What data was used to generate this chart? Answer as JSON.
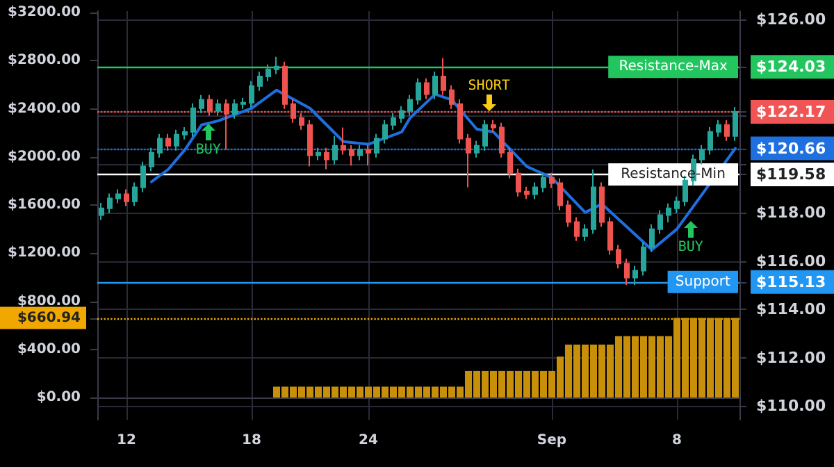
{
  "chart_data": {
    "type": "candlestick",
    "categories": [
      null,
      null,
      null,
      "12",
      null,
      null,
      null,
      null,
      null,
      null,
      null,
      null,
      null,
      null,
      null,
      null,
      null,
      null,
      "18",
      null,
      null,
      null,
      null,
      null,
      null,
      null,
      null,
      null,
      null,
      null,
      null,
      null,
      "24",
      null,
      null,
      null,
      null,
      null,
      null,
      null,
      null,
      null,
      null,
      null,
      null,
      null,
      null,
      null,
      null,
      null,
      null,
      null,
      null,
      null,
      "Sep",
      null,
      null,
      null,
      null,
      null,
      null,
      null,
      null,
      null,
      null,
      null,
      null,
      null,
      null,
      "8",
      null,
      null,
      null,
      null,
      null,
      null,
      null
    ],
    "ylim": [
      -185,
      3212
    ],
    "yticks": [
      {
        "value": 0,
        "label": "$0.00"
      },
      {
        "value": 400,
        "label": "$400.00"
      },
      {
        "value": 660.94,
        "label": "$660.94"
      },
      {
        "value": 800,
        "label": "$800.00"
      },
      {
        "value": 1200,
        "label": "$1200.00"
      },
      {
        "value": 1600,
        "label": "$1600.00"
      },
      {
        "value": 2000,
        "label": "$2000.00"
      },
      {
        "value": 2400,
        "label": "$2400.00"
      },
      {
        "value": 2800,
        "label": "$2800.00"
      },
      {
        "value": 3200,
        "label": "$3200.00"
      }
    ],
    "y2lim": [
      109.43,
      126.34
    ],
    "y2ticks": [
      {
        "value": 110,
        "label": "$110.00"
      },
      {
        "value": 112,
        "label": "$112.00"
      },
      {
        "value": 114,
        "label": "$114.00"
      },
      {
        "value": 116,
        "label": "$116.00"
      },
      {
        "value": 118,
        "label": "$118.00"
      },
      {
        "value": 120,
        "label": null
      },
      {
        "value": 122,
        "label": null
      },
      {
        "value": 124,
        "label": null
      },
      {
        "value": 126,
        "label": "$126.00"
      },
      {
        "value": 115.13,
        "label": "$115.13"
      },
      {
        "value": 119.58,
        "label": "$119.58"
      },
      {
        "value": 120.66,
        "label": "$120.66"
      },
      {
        "value": 122.17,
        "label": "$122.17"
      },
      {
        "value": 124.03,
        "label": "$124.03"
      }
    ],
    "grid": true,
    "marker": "none",
    "line_style": "solid",
    "series": [
      {
        "axis": "y2",
        "colors": [
          "#26a69a",
          "#26a69a",
          "#26a69a",
          "#ef5350",
          "#26a69a",
          "#26a69a",
          "#26a69a",
          "#26a69a",
          "#ef5350",
          "#26a69a",
          "#26a69a",
          "#26a69a",
          "#26a69a",
          "#ef5350",
          "#26a69a",
          "#ef5350",
          "#26a69a",
          "#26a69a",
          "#26a69a",
          "#26a69a",
          "#26a69a",
          "#26a69a",
          "#ef5350",
          "#ef5350",
          "#ef5350",
          "#ef5350",
          "#26a69a",
          "#ef5350",
          "#26a69a",
          "#ef5350",
          "#ef5350",
          "#26a69a",
          "#ef5350",
          "#26a69a",
          "#26a69a",
          "#26a69a",
          "#26a69a",
          "#26a69a",
          "#26a69a",
          "#ef5350",
          "#26a69a",
          "#ef5350",
          "#ef5350",
          "#ef5350",
          "#ef5350",
          "#26a69a",
          "#26a69a",
          "#ef5350",
          "#ef5350",
          "#ef5350",
          "#ef5350",
          "#ef5350",
          "#26a69a",
          "#26a69a",
          "#ef5350",
          "#ef5350",
          "#ef5350",
          "#ef5350",
          "#26a69a",
          "#26a69a",
          "#ef5350",
          "#ef5350",
          "#ef5350",
          "#ef5350",
          "#26a69a",
          "#26a69a",
          "#26a69a",
          "#26a69a",
          "#26a69a",
          "#26a69a",
          "#26a69a",
          "#26a69a",
          "#26a69a",
          "#26a69a",
          "#26a69a",
          "#ef5350",
          "#26a69a"
        ],
        "ohlc": [
          [
            117.9,
            118.4,
            117.7,
            118.18
          ],
          [
            118.18,
            118.79,
            117.98,
            118.59
          ],
          [
            118.59,
            118.96,
            118.39,
            118.76
          ],
          [
            118.76,
            118.96,
            118.27,
            118.47
          ],
          [
            118.47,
            119.25,
            118.27,
            119.05
          ],
          [
            119.05,
            120.11,
            118.85,
            119.91
          ],
          [
            119.91,
            120.68,
            119.71,
            120.48
          ],
          [
            120.48,
            121.26,
            120.28,
            121.06
          ],
          [
            121.06,
            121.26,
            120.57,
            120.77
          ],
          [
            120.77,
            121.43,
            120.57,
            121.23
          ],
          [
            121.23,
            121.54,
            121.03,
            121.34
          ],
          [
            121.34,
            122.52,
            121.14,
            122.32
          ],
          [
            122.32,
            122.87,
            122.12,
            122.67
          ],
          [
            122.67,
            122.87,
            122.01,
            122.21
          ],
          [
            122.21,
            122.69,
            122.01,
            122.49
          ],
          [
            122.49,
            122.69,
            120.6,
            122.09
          ],
          [
            122.09,
            122.69,
            121.89,
            122.49
          ],
          [
            122.49,
            122.75,
            122.29,
            122.55
          ],
          [
            122.55,
            123.44,
            122.35,
            123.24
          ],
          [
            123.24,
            123.84,
            123.04,
            123.64
          ],
          [
            123.64,
            124.13,
            123.44,
            123.93
          ],
          [
            123.93,
            124.45,
            123.73,
            124.05
          ],
          [
            124.05,
            124.25,
            122.29,
            122.49
          ],
          [
            122.49,
            122.69,
            121.72,
            121.92
          ],
          [
            121.92,
            122.12,
            121.43,
            121.63
          ],
          [
            121.63,
            121.83,
            119.91,
            120.37
          ],
          [
            120.37,
            120.68,
            120.17,
            120.48
          ],
          [
            120.48,
            120.68,
            119.8,
            120.2
          ],
          [
            120.2,
            121.17,
            120.0,
            120.77
          ],
          [
            120.77,
            121.52,
            120.4,
            120.6
          ],
          [
            120.6,
            120.8,
            119.95,
            120.37
          ],
          [
            120.37,
            120.8,
            120.17,
            120.6
          ],
          [
            120.6,
            120.8,
            119.95,
            120.48
          ],
          [
            120.48,
            121.26,
            120.28,
            121.06
          ],
          [
            121.06,
            121.83,
            120.86,
            121.63
          ],
          [
            121.63,
            122.12,
            121.43,
            121.92
          ],
          [
            121.92,
            122.41,
            121.72,
            122.21
          ],
          [
            122.21,
            122.87,
            122.01,
            122.67
          ],
          [
            122.67,
            123.56,
            122.47,
            123.36
          ],
          [
            123.36,
            123.56,
            122.7,
            122.9
          ],
          [
            122.9,
            123.84,
            122.7,
            123.64
          ],
          [
            123.64,
            124.4,
            122.87,
            123.07
          ],
          [
            123.07,
            123.27,
            122.29,
            122.49
          ],
          [
            122.49,
            122.69,
            120.86,
            121.06
          ],
          [
            121.06,
            121.26,
            119.05,
            120.48
          ],
          [
            120.48,
            120.97,
            120.28,
            120.77
          ],
          [
            120.77,
            121.83,
            120.57,
            121.63
          ],
          [
            121.63,
            121.83,
            121.32,
            121.52
          ],
          [
            121.52,
            121.72,
            120.28,
            120.48
          ],
          [
            120.48,
            120.68,
            119.42,
            119.62
          ],
          [
            119.62,
            119.82,
            118.67,
            118.87
          ],
          [
            118.87,
            119.07,
            118.56,
            118.76
          ],
          [
            118.76,
            119.25,
            118.56,
            119.05
          ],
          [
            119.05,
            119.65,
            118.85,
            119.45
          ],
          [
            119.45,
            119.65,
            119.02,
            119.22
          ],
          [
            119.22,
            119.42,
            118.1,
            118.3
          ],
          [
            118.3,
            118.5,
            117.41,
            117.61
          ],
          [
            117.61,
            117.81,
            116.83,
            117.03
          ],
          [
            117.03,
            117.52,
            116.83,
            117.32
          ],
          [
            117.32,
            119.79,
            117.12,
            119.05
          ],
          [
            119.05,
            119.25,
            117.41,
            117.61
          ],
          [
            117.61,
            117.81,
            116.26,
            116.46
          ],
          [
            116.46,
            116.66,
            115.69,
            115.89
          ],
          [
            115.89,
            116.09,
            115.0,
            115.31
          ],
          [
            115.31,
            115.8,
            115.0,
            115.6
          ],
          [
            115.6,
            116.77,
            115.4,
            116.57
          ],
          [
            116.57,
            117.52,
            116.37,
            117.32
          ],
          [
            117.32,
            118.1,
            117.12,
            117.9
          ],
          [
            117.9,
            118.38,
            117.6,
            118.18
          ],
          [
            118.18,
            118.67,
            117.98,
            118.47
          ],
          [
            118.47,
            119.53,
            118.27,
            119.33
          ],
          [
            119.33,
            120.4,
            119.13,
            120.2
          ],
          [
            120.2,
            120.8,
            120.0,
            120.6
          ],
          [
            120.6,
            121.54,
            120.4,
            121.34
          ],
          [
            121.34,
            121.83,
            121.14,
            121.63
          ],
          [
            121.63,
            121.83,
            120.97,
            121.17
          ],
          [
            121.17,
            122.37,
            120.97,
            122.17
          ]
        ]
      },
      {
        "type": "line",
        "axis": "y2",
        "color": "#1e6fe0",
        "values": [
          null,
          null,
          null,
          null,
          null,
          null,
          119.28,
          null,
          119.79,
          null,
          120.6,
          null,
          121.63,
          null,
          121.8,
          null,
          null,
          null,
          122.32,
          null,
          null,
          123.07,
          null,
          null,
          null,
          122.32,
          null,
          null,
          null,
          120.94,
          null,
          null,
          120.83,
          null,
          null,
          null,
          121.34,
          121.92,
          null,
          null,
          122.9,
          null,
          122.67,
          null,
          null,
          121.46,
          null,
          121.34,
          null,
          null,
          null,
          119.91,
          null,
          null,
          119.45,
          null,
          null,
          null,
          118.01,
          null,
          118.36,
          null,
          null,
          null,
          null,
          null,
          116.46,
          null,
          null,
          117.32,
          null,
          null,
          null,
          null,
          null,
          null,
          120.66
        ]
      },
      {
        "type": "bar",
        "axis": "y",
        "color": "#c8900a",
        "values": [
          0,
          0,
          0,
          0,
          0,
          0,
          0,
          0,
          0,
          0,
          0,
          0,
          0,
          0,
          0,
          0,
          0,
          0,
          0,
          0,
          0,
          90,
          90,
          90,
          90,
          90,
          90,
          90,
          90,
          90,
          90,
          90,
          90,
          90,
          90,
          90,
          90,
          90,
          90,
          90,
          90,
          90,
          90,
          90,
          220,
          220,
          220,
          220,
          220,
          220,
          220,
          220,
          220,
          220,
          220,
          340,
          440,
          440,
          440,
          440,
          440,
          440,
          510,
          510,
          510,
          510,
          510,
          510,
          510,
          660.94,
          660.94,
          660.94,
          660.94,
          660.94,
          660.94,
          660.94,
          660.94
        ]
      }
    ],
    "ref_lines": [
      {
        "axis": "y2",
        "value": 124.03,
        "label": "Resistance-Max",
        "color": "#22c55e",
        "line_style": "solid"
      },
      {
        "axis": "y2",
        "value": 122.17,
        "label": null,
        "color": "#f05454",
        "line_style": "dotted"
      },
      {
        "axis": "y2",
        "value": 120.66,
        "label": null,
        "color": "#1e6fe0",
        "line_style": "dotted"
      },
      {
        "axis": "y2",
        "value": 119.58,
        "label": "Resistance-Min",
        "color": "#ffffff",
        "line_style": "solid"
      },
      {
        "axis": "y2",
        "value": 115.13,
        "label": "Support",
        "color": "#2196f3",
        "line_style": "solid"
      },
      {
        "axis": "y",
        "value": 660.94,
        "label": null,
        "color": "#f0a800",
        "line_style": "dotted"
      }
    ],
    "annotations": [
      "BUY",
      "SHORT",
      "BUY"
    ]
  }
}
